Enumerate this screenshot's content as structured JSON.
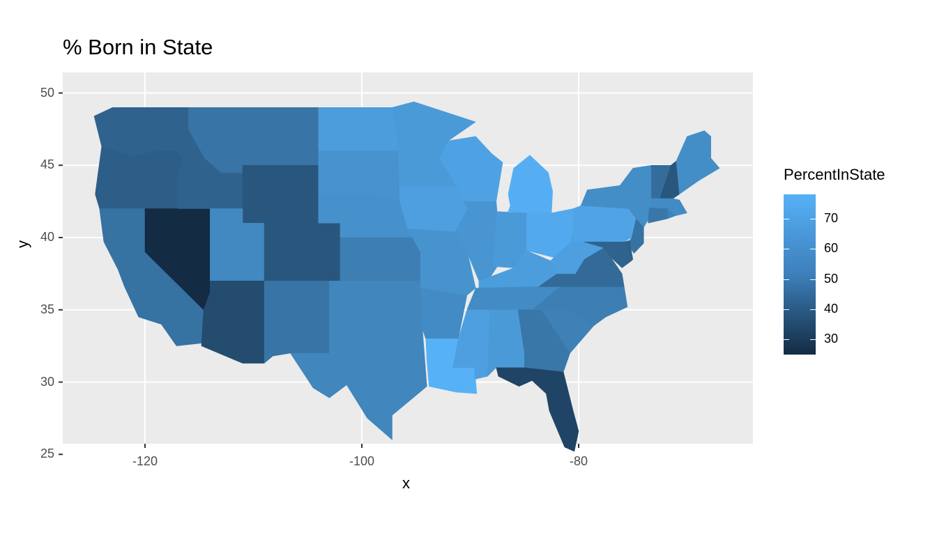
{
  "chart": {
    "title": "% Born in State",
    "xlabel": "x",
    "ylabel": "y",
    "legend_title": "PercentInState",
    "x_ticks": [
      "-120",
      "-100",
      "-80"
    ],
    "y_ticks": [
      "25",
      "30",
      "35",
      "40",
      "45",
      "50"
    ],
    "legend_ticks": [
      "30",
      "40",
      "50",
      "60",
      "70"
    ]
  },
  "chart_data": {
    "type": "choropleth",
    "title": "% Born in State",
    "xlabel": "x",
    "ylabel": "y",
    "xlim": [
      -126,
      -66
    ],
    "ylim": [
      24.5,
      50.5
    ],
    "legend": "PercentInState",
    "colors": {
      "low": "#132b43",
      "high": "#56b1f7",
      "panel": "#ebebeb"
    },
    "legend_range": [
      25,
      78
    ],
    "states": [
      {
        "name": "WA",
        "value": 47
      },
      {
        "name": "OR",
        "value": 45
      },
      {
        "name": "CA",
        "value": 53
      },
      {
        "name": "NV",
        "value": 25
      },
      {
        "name": "ID",
        "value": 47
      },
      {
        "name": "MT",
        "value": 54
      },
      {
        "name": "WY",
        "value": 42
      },
      {
        "name": "UT",
        "value": 62
      },
      {
        "name": "CO",
        "value": 42
      },
      {
        "name": "AZ",
        "value": 38
      },
      {
        "name": "NM",
        "value": 54
      },
      {
        "name": "ND",
        "value": 70
      },
      {
        "name": "SD",
        "value": 66
      },
      {
        "name": "NE",
        "value": 65
      },
      {
        "name": "KS",
        "value": 58
      },
      {
        "name": "OK",
        "value": 61
      },
      {
        "name": "TX",
        "value": 61
      },
      {
        "name": "MN",
        "value": 69
      },
      {
        "name": "IA",
        "value": 71
      },
      {
        "name": "MO",
        "value": 66
      },
      {
        "name": "AR",
        "value": 63
      },
      {
        "name": "LA",
        "value": 78
      },
      {
        "name": "WI",
        "value": 72
      },
      {
        "name": "IL",
        "value": 67
      },
      {
        "name": "MI",
        "value": 77
      },
      {
        "name": "IN",
        "value": 69
      },
      {
        "name": "OH",
        "value": 75
      },
      {
        "name": "KY",
        "value": 70
      },
      {
        "name": "TN",
        "value": 63
      },
      {
        "name": "MS",
        "value": 71
      },
      {
        "name": "AL",
        "value": 69
      },
      {
        "name": "GA",
        "value": 55
      },
      {
        "name": "FL",
        "value": 35
      },
      {
        "name": "SC",
        "value": 59
      },
      {
        "name": "NC",
        "value": 58
      },
      {
        "name": "VA",
        "value": 50
      },
      {
        "name": "WV",
        "value": 71
      },
      {
        "name": "PA",
        "value": 73
      },
      {
        "name": "NY",
        "value": 64
      },
      {
        "name": "NJ",
        "value": 53
      },
      {
        "name": "DE",
        "value": 46
      },
      {
        "name": "MD",
        "value": 47
      },
      {
        "name": "VT",
        "value": 51
      },
      {
        "name": "NH",
        "value": 42
      },
      {
        "name": "ME",
        "value": 64
      },
      {
        "name": "MA",
        "value": 63
      },
      {
        "name": "CT",
        "value": 55
      },
      {
        "name": "RI",
        "value": 59
      }
    ]
  }
}
